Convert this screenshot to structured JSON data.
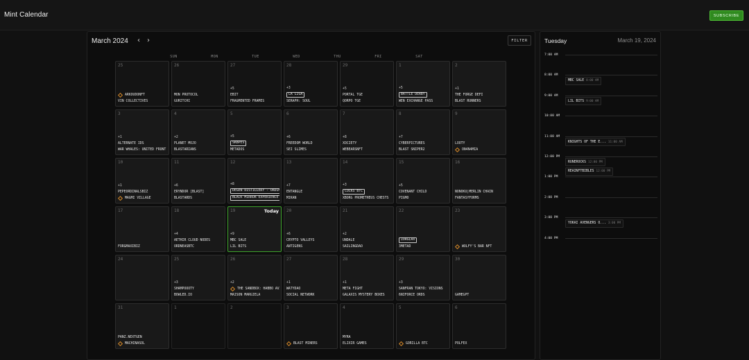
{
  "header": {
    "title": "Mint Calendar",
    "subscribe_label": "SUBSCRIBE"
  },
  "calendar": {
    "month_title": "March 2024",
    "prev_icon": "chevron-left-icon",
    "next_icon": "chevron-right-icon",
    "prev_glyph": "‹",
    "next_glyph": "›",
    "filter_label": "FILTER",
    "weekdays": [
      "SUN",
      "MON",
      "TUE",
      "WED",
      "THU",
      "FRI",
      "SAT"
    ],
    "today_label": "Today",
    "days": [
      {
        "num": "25",
        "other": true,
        "events": [
          {
            "text": "ARKOUDONFT",
            "icon": "diamond"
          },
          {
            "text": "VIN COLLECTIVES"
          }
        ]
      },
      {
        "num": "26",
        "other": true,
        "events": [
          {
            "text": "MON PROTOCOL"
          },
          {
            "text": "GURITCHI"
          }
        ]
      },
      {
        "num": "27",
        "other": true,
        "more": "+5",
        "events": [
          {
            "text": "EBIT"
          },
          {
            "text": "FRAGMENTED FRAMES"
          }
        ]
      },
      {
        "num": "28",
        "other": true,
        "more": "+3",
        "events": [
          {
            "text": "LA LIGA",
            "boxed": true
          },
          {
            "text": "SERAPH: SOUL"
          }
        ]
      },
      {
        "num": "29",
        "other": true,
        "more": "+5",
        "events": [
          {
            "text": "PORTAL TGE"
          },
          {
            "text": "QORPO TGE"
          }
        ]
      },
      {
        "num": "1",
        "more": "+5",
        "events": [
          {
            "text": "BATTLE DERBY",
            "boxed": true
          },
          {
            "text": "WEN EXCHANGE PASS"
          }
        ]
      },
      {
        "num": "2",
        "more": "+1",
        "events": [
          {
            "text": "THE FORGE DEFI"
          },
          {
            "text": "BLAST RUNNERS"
          }
        ]
      },
      {
        "num": "3",
        "more": "+1",
        "events": [
          {
            "text": "ALTERNATE IDS"
          },
          {
            "text": "WAR WHALES: UNITED FRONT"
          }
        ]
      },
      {
        "num": "4",
        "more": "+2",
        "events": [
          {
            "text": "PLANET MOJO"
          },
          {
            "text": "BLASTARIANS"
          }
        ]
      },
      {
        "num": "5",
        "more": "+5",
        "events": [
          {
            "text": "SKBPES",
            "boxed": true
          },
          {
            "text": "METADOS"
          }
        ]
      },
      {
        "num": "6",
        "more": "+6",
        "events": [
          {
            "text": "FREEDOM WORLD"
          },
          {
            "text": "SEI SLIMES"
          }
        ]
      },
      {
        "num": "7",
        "more": "+8",
        "events": [
          {
            "text": "XOCIETY"
          },
          {
            "text": "WEBEARSNFT"
          }
        ]
      },
      {
        "num": "8",
        "more": "+7",
        "events": [
          {
            "text": "CYBERPICTURES"
          },
          {
            "text": "BLAST SNIPER2"
          }
        ]
      },
      {
        "num": "9",
        "events": [
          {
            "text": "LOOTY"
          },
          {
            "text": "ON4N4MIA",
            "icon": "diamond"
          }
        ]
      },
      {
        "num": "10",
        "more": "+1",
        "events": [
          {
            "text": "PEPEORDINALSBIZ"
          },
          {
            "text": "MAGMI VILLAGE",
            "icon": "diamond"
          }
        ]
      },
      {
        "num": "11",
        "more": "+6",
        "events": [
          {
            "text": "ERYNDOR [BLAST]"
          },
          {
            "text": "BLASTARDS"
          }
        ]
      },
      {
        "num": "12",
        "more": "+8",
        "events": [
          {
            "text": "DEGEN DISTILLERY - ORDINALS",
            "boxed": true
          },
          {
            "text": "BLACK MIRROR EXPERIENCE",
            "boxed": true
          }
        ]
      },
      {
        "num": "13",
        "more": "+7",
        "events": [
          {
            "text": "ENTANGLE"
          },
          {
            "text": "MIKAN"
          }
        ]
      },
      {
        "num": "14",
        "more": "+3",
        "events": [
          {
            "text": "COCKS BTC",
            "boxed": true
          },
          {
            "text": "XBORG PROMETHEUS CHESTS"
          }
        ]
      },
      {
        "num": "15",
        "more": "+5",
        "events": [
          {
            "text": "COVENANT CHILD"
          },
          {
            "text": "PIGMO"
          }
        ]
      },
      {
        "num": "16",
        "events": [
          {
            "text": "NONOKU|MERLIN CHAIN"
          },
          {
            "text": "FANTASYFORMS"
          }
        ]
      },
      {
        "num": "17",
        "events": [
          {
            "text": "FORGMAXIBIZ"
          }
        ]
      },
      {
        "num": "18",
        "more": "+4",
        "events": [
          {
            "text": "AETHIR CLOUD NODES"
          },
          {
            "text": "ORDNEASBTC"
          }
        ]
      },
      {
        "num": "19",
        "today": true,
        "more": "+9",
        "events": [
          {
            "text": "MBC SALE"
          },
          {
            "text": "LIL BITS"
          }
        ]
      },
      {
        "num": "20",
        "more": "+6",
        "events": [
          {
            "text": "CRYPTO VALLEYS"
          },
          {
            "text": "ANTIGENS"
          }
        ]
      },
      {
        "num": "21",
        "more": "+2",
        "events": [
          {
            "text": "UNDALE"
          },
          {
            "text": "SAILINGDAO"
          }
        ]
      },
      {
        "num": "22",
        "events": [
          {
            "text": "ZORGLAX",
            "boxed": true
          },
          {
            "text": "3METAD"
          }
        ]
      },
      {
        "num": "23",
        "events": [
          {
            "text": "WOLFY'S BAR NFT",
            "icon": "diamond"
          }
        ]
      },
      {
        "num": "24",
        "events": []
      },
      {
        "num": "25",
        "more": "+3",
        "events": [
          {
            "text": "SHAMPOOOTY"
          },
          {
            "text": "BOWLED.IO"
          }
        ]
      },
      {
        "num": "26",
        "more": "+2",
        "events": [
          {
            "text": "THE SANDBOX: HABBO AVATARS",
            "icon": "diamond"
          },
          {
            "text": "MAISON MARGIELA"
          }
        ]
      },
      {
        "num": "27",
        "more": "+1",
        "events": [
          {
            "text": "WATYDAO"
          },
          {
            "text": "SOCIAL NETWORK"
          }
        ]
      },
      {
        "num": "28",
        "more": "+1",
        "events": [
          {
            "text": "META FIGHT"
          },
          {
            "text": "GALAXIS MYSTERY BOXES"
          }
        ]
      },
      {
        "num": "29",
        "more": "+3",
        "events": [
          {
            "text": "SANFRAN TOKYO: VISIONS"
          },
          {
            "text": "6NIFORCE ORDS"
          }
        ]
      },
      {
        "num": "30",
        "events": [
          {
            "text": "GAMEGPT"
          }
        ]
      },
      {
        "num": "31",
        "events": [
          {
            "text": "PANZ.NEXTGEN"
          },
          {
            "text": "MACHINASOL",
            "icon": "diamond"
          }
        ]
      },
      {
        "num": "1",
        "other": true,
        "empty": true,
        "events": []
      },
      {
        "num": "2",
        "other": true,
        "empty": true,
        "events": []
      },
      {
        "num": "3",
        "other": true,
        "events": [
          {
            "text": "BLAST MINERS",
            "icon": "diamond"
          }
        ]
      },
      {
        "num": "4",
        "other": true,
        "events": [
          {
            "text": "MYRA"
          },
          {
            "text": "ELIXIR GAMES"
          }
        ]
      },
      {
        "num": "5",
        "other": true,
        "events": [
          {
            "text": "GORILLA BTC",
            "icon": "diamond"
          }
        ]
      },
      {
        "num": "6",
        "other": true,
        "events": [
          {
            "text": "POLFEX"
          }
        ]
      }
    ]
  },
  "day_view": {
    "weekday": "Tuesday",
    "date": "March 19, 2024",
    "hours": [
      "7:00 AM",
      "8:00 AM",
      "9:00 AM",
      "10:00 AM",
      "11:00 AM",
      "12:00 PM",
      "1:00 PM",
      "2:00 PM",
      "3:00 PM",
      "4:00 PM"
    ],
    "events": [
      {
        "name": "MBC SALE",
        "time": "8:00 AM",
        "start": 8.05
      },
      {
        "name": "LIL BITS",
        "time": "9:00 AM",
        "start": 9.05
      },
      {
        "name": "KNIGHTS OF THE E...",
        "time": "11:00 AM",
        "start": 11.05
      },
      {
        "name": "RUNEROCKS",
        "time": "12:00 PM",
        "start": 12.05
      },
      {
        "name": "REAINFTBIBLES",
        "time": "12:00 PM",
        "start": 12.5
      },
      {
        "name": "YOKAI AVENGERS O...",
        "time": "3:00 PM",
        "start": 15.05
      }
    ]
  }
}
